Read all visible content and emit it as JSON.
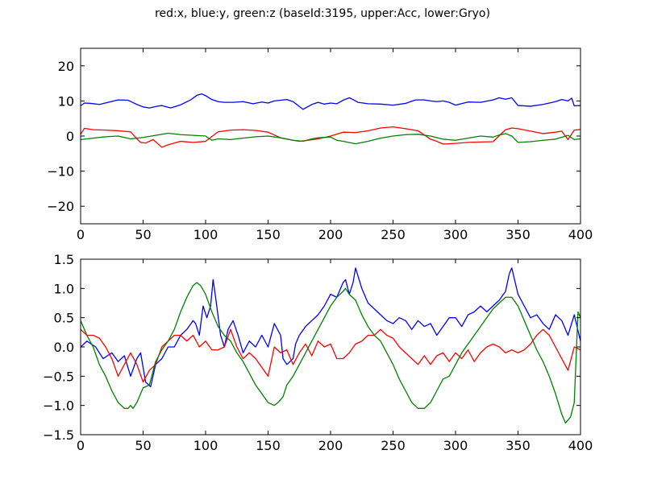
{
  "figure": {
    "suptitle": "red:x, blue:y, green:z (baseId:3195, upper:Acc, lower:Gryo)"
  },
  "chart_data": [
    {
      "type": "line",
      "title": "",
      "xlabel": "",
      "ylabel": "",
      "xlim": [
        0,
        400
      ],
      "ylim": [
        -25,
        25
      ],
      "xticks": [
        0,
        50,
        100,
        150,
        200,
        250,
        300,
        350,
        400
      ],
      "xtick_labels": [
        "0",
        "50",
        "100",
        "150",
        "200",
        "250",
        "300",
        "350",
        "400"
      ],
      "yticks": [
        -20,
        -10,
        0,
        10,
        20
      ],
      "ytick_labels": [
        "−20",
        "−10",
        "0",
        "10",
        "20"
      ],
      "grid": false,
      "legend": "none",
      "series": [
        {
          "color": "#0000ff",
          "x": [
            0,
            3,
            8,
            15,
            22,
            30,
            38,
            45,
            50,
            55,
            60,
            65,
            72,
            80,
            88,
            93,
            97,
            100,
            105,
            110,
            115,
            122,
            130,
            138,
            145,
            150,
            155,
            160,
            165,
            170,
            178,
            185,
            190,
            195,
            200,
            205,
            210,
            215,
            218,
            222,
            230,
            240,
            250,
            260,
            268,
            275,
            280,
            285,
            290,
            295,
            300,
            310,
            320,
            330,
            335,
            340,
            345,
            350,
            360,
            370,
            380,
            385,
            390,
            393,
            395,
            400
          ],
          "y": [
            8.6,
            9.4,
            9.3,
            9.0,
            9.6,
            10.3,
            10.2,
            9.0,
            8.3,
            8.0,
            8.4,
            8.7,
            8.0,
            8.9,
            10.3,
            11.6,
            12.0,
            11.5,
            10.4,
            9.8,
            9.6,
            9.6,
            9.8,
            9.2,
            9.7,
            9.4,
            10.0,
            10.2,
            10.4,
            9.8,
            7.6,
            9.0,
            9.6,
            9.1,
            9.4,
            9.2,
            10.2,
            10.9,
            10.4,
            9.6,
            9.2,
            9.1,
            8.8,
            9.3,
            10.3,
            10.3,
            10.0,
            9.8,
            10.0,
            9.6,
            8.8,
            9.7,
            9.6,
            10.3,
            10.9,
            10.5,
            10.9,
            8.7,
            8.5,
            9.0,
            9.8,
            10.4,
            10.0,
            10.8,
            8.6,
            8.7
          ]
        },
        {
          "color": "#ff0000",
          "x": [
            0,
            3,
            10,
            20,
            30,
            40,
            45,
            48,
            52,
            58,
            65,
            70,
            80,
            90,
            100,
            110,
            120,
            130,
            140,
            150,
            160,
            170,
            175,
            180,
            190,
            200,
            210,
            220,
            230,
            240,
            250,
            260,
            270,
            280,
            285,
            290,
            300,
            310,
            320,
            330,
            340,
            345,
            350,
            360,
            370,
            380,
            385,
            390,
            395,
            400
          ],
          "y": [
            0.5,
            2.2,
            1.8,
            1.7,
            1.5,
            1.2,
            -0.8,
            -1.8,
            -2.0,
            -1.0,
            -3.2,
            -2.5,
            -1.5,
            -1.8,
            -1.5,
            1.2,
            1.7,
            1.8,
            1.6,
            1.1,
            -0.5,
            -1.2,
            -1.5,
            -1.3,
            -0.8,
            0.0,
            1.1,
            1.0,
            1.5,
            2.3,
            2.6,
            2.1,
            1.5,
            -0.9,
            -1.5,
            -2.3,
            -2.1,
            -1.8,
            -1.7,
            -1.6,
            1.8,
            2.3,
            2.1,
            1.4,
            0.7,
            1.1,
            1.4,
            -1.0,
            1.7,
            1.9
          ]
        },
        {
          "color": "#008000",
          "x": [
            0,
            10,
            20,
            30,
            40,
            50,
            60,
            70,
            80,
            90,
            100,
            105,
            110,
            120,
            130,
            140,
            150,
            160,
            170,
            178,
            185,
            190,
            200,
            205,
            210,
            220,
            230,
            240,
            250,
            260,
            270,
            280,
            290,
            300,
            310,
            320,
            330,
            335,
            340,
            345,
            350,
            360,
            370,
            380,
            390,
            395,
            400
          ],
          "y": [
            -1.0,
            -0.6,
            -0.2,
            0.0,
            -0.8,
            -0.4,
            0.2,
            0.8,
            0.4,
            0.2,
            0.0,
            -1.2,
            -0.8,
            -1.0,
            -0.6,
            -0.2,
            0.0,
            -0.5,
            -1.2,
            -1.5,
            -0.8,
            -0.5,
            -0.3,
            -1.2,
            -1.5,
            -2.2,
            -1.5,
            -0.6,
            0.0,
            0.4,
            0.5,
            0.0,
            -0.9,
            -1.2,
            -0.6,
            0.0,
            -0.3,
            0.3,
            0.7,
            0.0,
            -1.8,
            -1.6,
            -1.2,
            -0.9,
            0.2,
            -1.0,
            -0.8
          ]
        }
      ]
    },
    {
      "type": "line",
      "title": "",
      "xlabel": "",
      "ylabel": "",
      "xlim": [
        0,
        400
      ],
      "ylim": [
        -1.5,
        1.5
      ],
      "xticks": [
        0,
        50,
        100,
        150,
        200,
        250,
        300,
        350,
        400
      ],
      "xtick_labels": [
        "0",
        "50",
        "100",
        "150",
        "200",
        "250",
        "300",
        "350",
        "400"
      ],
      "yticks": [
        -1.5,
        -1.0,
        -0.5,
        0.0,
        0.5,
        1.0,
        1.5
      ],
      "ytick_labels": [
        "−1.5",
        "−1.0",
        "−0.5",
        "0.0",
        "0.5",
        "1.0",
        "1.5"
      ],
      "grid": false,
      "legend": "none",
      "series": [
        {
          "color": "#0000ff",
          "x": [
            0,
            5,
            12,
            18,
            25,
            30,
            35,
            40,
            45,
            48,
            52,
            56,
            60,
            65,
            70,
            75,
            80,
            85,
            90,
            92,
            95,
            98,
            101,
            104,
            106,
            108,
            112,
            115,
            118,
            122,
            126,
            130,
            135,
            140,
            145,
            150,
            155,
            160,
            162,
            165,
            170,
            172,
            175,
            180,
            185,
            190,
            195,
            200,
            205,
            210,
            212,
            215,
            218,
            220,
            225,
            230,
            235,
            240,
            245,
            250,
            255,
            260,
            265,
            270,
            275,
            280,
            285,
            290,
            295,
            300,
            305,
            310,
            315,
            320,
            325,
            330,
            335,
            340,
            343,
            345,
            350,
            355,
            360,
            365,
            370,
            375,
            380,
            385,
            390,
            395,
            400
          ],
          "y": [
            0.0,
            0.1,
            0.0,
            -0.2,
            -0.1,
            -0.25,
            -0.15,
            -0.5,
            -0.2,
            -0.1,
            -0.6,
            -0.68,
            -0.3,
            -0.2,
            0.0,
            0.0,
            0.2,
            0.3,
            0.45,
            0.4,
            0.2,
            0.7,
            0.5,
            0.7,
            1.15,
            0.85,
            0.2,
            0.0,
            0.3,
            0.45,
            0.2,
            -0.1,
            0.1,
            0.0,
            0.2,
            0.0,
            0.4,
            0.2,
            -0.2,
            -0.3,
            -0.2,
            0.05,
            0.2,
            0.35,
            0.45,
            0.55,
            0.7,
            0.9,
            0.85,
            1.1,
            1.15,
            0.9,
            1.1,
            1.35,
            1.0,
            0.75,
            0.65,
            0.55,
            0.45,
            0.4,
            0.5,
            0.45,
            0.3,
            0.45,
            0.35,
            0.4,
            0.2,
            0.35,
            0.5,
            0.5,
            0.35,
            0.55,
            0.6,
            0.7,
            0.6,
            0.7,
            0.8,
            0.95,
            1.25,
            1.35,
            0.9,
            0.7,
            0.5,
            0.55,
            0.4,
            0.3,
            0.55,
            0.45,
            0.2,
            0.55,
            0.1
          ]
        },
        {
          "color": "#ff0000",
          "x": [
            0,
            5,
            10,
            15,
            20,
            25,
            30,
            35,
            40,
            45,
            50,
            55,
            60,
            65,
            70,
            75,
            80,
            85,
            90,
            95,
            100,
            105,
            110,
            115,
            120,
            125,
            130,
            135,
            140,
            145,
            150,
            155,
            160,
            165,
            170,
            175,
            180,
            185,
            190,
            195,
            200,
            205,
            210,
            215,
            220,
            225,
            230,
            235,
            240,
            245,
            250,
            255,
            260,
            265,
            270,
            275,
            280,
            285,
            290,
            295,
            300,
            305,
            310,
            315,
            320,
            325,
            330,
            335,
            340,
            345,
            350,
            355,
            360,
            365,
            370,
            375,
            380,
            385,
            390,
            395,
            400
          ],
          "y": [
            0.3,
            0.2,
            0.2,
            0.15,
            0.0,
            -0.2,
            -0.5,
            -0.3,
            -0.1,
            -0.3,
            -0.6,
            -0.4,
            -0.3,
            0.0,
            0.1,
            0.2,
            0.2,
            0.1,
            0.2,
            0.0,
            0.1,
            -0.05,
            -0.05,
            0.0,
            0.3,
            0.0,
            -0.2,
            -0.1,
            -0.2,
            -0.35,
            -0.5,
            0.0,
            -0.1,
            -0.05,
            -0.3,
            -0.1,
            0.05,
            -0.15,
            0.1,
            0.0,
            0.05,
            -0.2,
            -0.2,
            -0.1,
            0.05,
            0.1,
            0.2,
            0.2,
            0.3,
            0.2,
            0.15,
            0.0,
            -0.1,
            -0.2,
            -0.3,
            -0.15,
            -0.3,
            -0.15,
            -0.1,
            -0.25,
            -0.1,
            -0.2,
            -0.05,
            -0.25,
            -0.1,
            0.0,
            0.05,
            0.0,
            -0.1,
            -0.05,
            -0.1,
            -0.05,
            0.05,
            0.2,
            0.3,
            0.2,
            0.0,
            -0.2,
            -0.4,
            0.0,
            -0.05
          ]
        },
        {
          "color": "#008000",
          "x": [
            0,
            5,
            10,
            15,
            20,
            25,
            30,
            35,
            38,
            40,
            42,
            45,
            50,
            55,
            60,
            65,
            70,
            75,
            80,
            85,
            90,
            93,
            96,
            100,
            105,
            110,
            115,
            120,
            125,
            130,
            135,
            140,
            145,
            150,
            155,
            158,
            162,
            165,
            170,
            175,
            180,
            185,
            190,
            195,
            200,
            205,
            210,
            212,
            215,
            220,
            225,
            230,
            235,
            240,
            245,
            250,
            255,
            260,
            265,
            270,
            275,
            280,
            285,
            290,
            295,
            300,
            305,
            310,
            315,
            320,
            325,
            330,
            335,
            340,
            345,
            350,
            355,
            360,
            365,
            370,
            375,
            380,
            385,
            388,
            392,
            395,
            398,
            400
          ],
          "y": [
            0.45,
            0.2,
            0.0,
            -0.3,
            -0.5,
            -0.75,
            -0.95,
            -1.05,
            -1.05,
            -1.0,
            -1.05,
            -0.95,
            -0.7,
            -0.65,
            -0.25,
            -0.05,
            0.1,
            0.3,
            0.6,
            0.85,
            1.05,
            1.1,
            1.05,
            0.9,
            0.6,
            0.35,
            0.2,
            0.1,
            -0.1,
            -0.25,
            -0.45,
            -0.65,
            -0.8,
            -0.95,
            -1.0,
            -0.95,
            -0.85,
            -0.65,
            -0.5,
            -0.3,
            -0.1,
            0.1,
            0.3,
            0.5,
            0.7,
            0.85,
            0.95,
            1.0,
            0.9,
            0.8,
            0.55,
            0.35,
            0.2,
            0.1,
            -0.1,
            -0.3,
            -0.55,
            -0.75,
            -0.95,
            -1.05,
            -1.05,
            -0.95,
            -0.75,
            -0.55,
            -0.5,
            -0.3,
            -0.1,
            0.05,
            0.2,
            0.35,
            0.5,
            0.65,
            0.75,
            0.85,
            0.85,
            0.7,
            0.45,
            0.2,
            -0.05,
            -0.25,
            -0.5,
            -0.8,
            -1.15,
            -1.3,
            -1.2,
            -0.95,
            0.6,
            0.5
          ]
        }
      ]
    }
  ]
}
